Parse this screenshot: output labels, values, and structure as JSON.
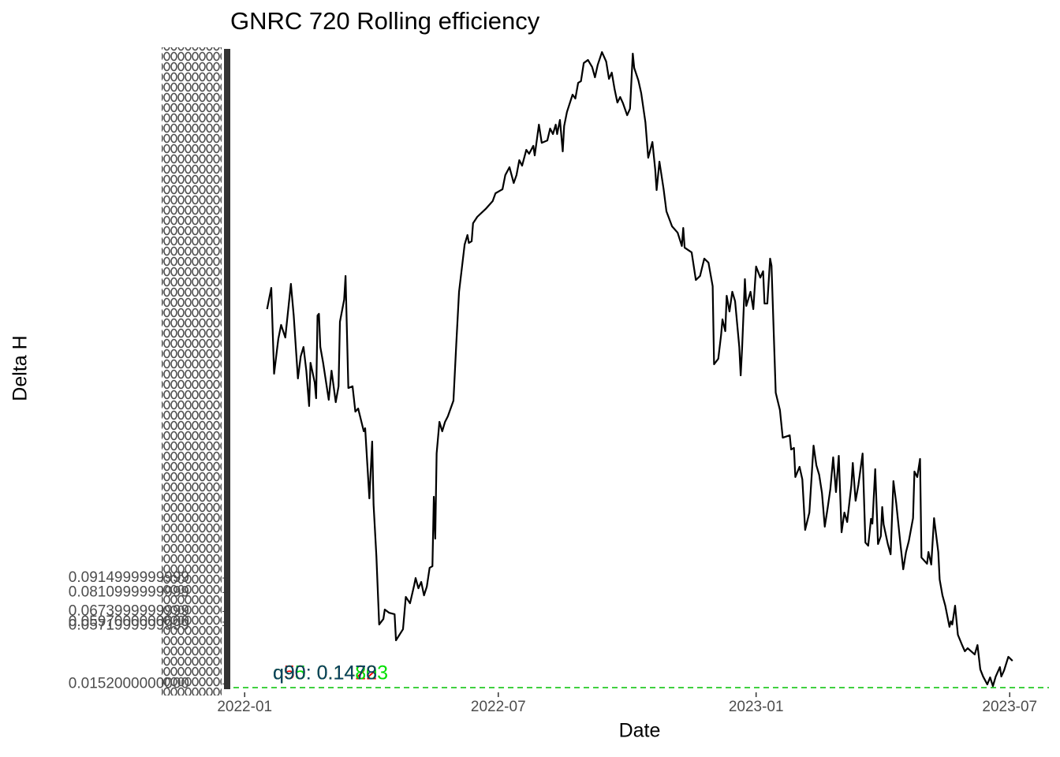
{
  "chart_data": {
    "type": "line",
    "title": "GNRC 720 Rolling efficiency",
    "x_label": "Date",
    "y_label": "Delta H",
    "color": "#000000",
    "x": [
      "2022-01-17",
      "2022-01-20",
      "2022-01-22",
      "2022-01-25",
      "2022-01-27",
      "2022-01-30",
      "2022-02-03",
      "2022-02-05",
      "2022-02-08",
      "2022-02-10",
      "2022-02-12",
      "2022-02-14",
      "2022-02-16",
      "2022-02-17",
      "2022-02-20",
      "2022-02-21",
      "2022-02-22",
      "2022-02-23",
      "2022-02-24",
      "2022-02-26",
      "2022-03-02",
      "2022-03-04",
      "2022-03-07",
      "2022-03-09",
      "2022-03-10",
      "2022-03-13",
      "2022-03-14",
      "2022-03-16",
      "2022-03-19",
      "2022-03-21",
      "2022-03-23",
      "2022-03-27",
      "2022-03-28",
      "2022-03-31",
      "2022-04-02",
      "2022-04-03",
      "2022-04-05",
      "2022-04-07",
      "2022-04-10",
      "2022-04-11",
      "2022-04-14",
      "2022-04-18",
      "2022-04-19",
      "2022-04-24",
      "2022-04-26",
      "2022-04-29",
      "2022-05-02",
      "2022-05-03",
      "2022-05-05",
      "2022-05-07",
      "2022-05-09",
      "2022-05-11",
      "2022-05-13",
      "2022-05-15",
      "2022-05-16",
      "2022-05-17",
      "2022-05-18",
      "2022-05-20",
      "2022-05-22",
      "2022-05-24",
      "2022-05-26",
      "2022-05-30",
      "2022-06-01",
      "2022-06-03",
      "2022-06-07",
      "2022-06-09",
      "2022-06-10",
      "2022-06-12",
      "2022-06-13",
      "2022-06-16",
      "2022-06-22",
      "2022-06-27",
      "2022-06-29",
      "2022-07-04",
      "2022-07-06",
      "2022-07-09",
      "2022-07-12",
      "2022-07-14",
      "2022-07-16",
      "2022-07-18",
      "2022-07-21",
      "2022-07-23",
      "2022-07-26",
      "2022-07-27",
      "2022-07-30",
      "2022-08-01",
      "2022-08-05",
      "2022-08-07",
      "2022-08-09",
      "2022-08-11",
      "2022-08-12",
      "2022-08-14",
      "2022-08-16",
      "2022-08-17",
      "2022-08-19",
      "2022-08-23",
      "2022-08-25",
      "2022-08-27",
      "2022-08-29",
      "2022-08-31",
      "2022-09-03",
      "2022-09-06",
      "2022-09-08",
      "2022-09-10",
      "2022-09-13",
      "2022-09-16",
      "2022-09-18",
      "2022-09-20",
      "2022-09-22",
      "2022-09-24",
      "2022-09-26",
      "2022-09-28",
      "2022-10-01",
      "2022-10-03",
      "2022-10-05",
      "2022-10-06",
      "2022-10-09",
      "2022-10-11",
      "2022-10-14",
      "2022-10-16",
      "2022-10-19",
      "2022-10-21",
      "2022-10-22",
      "2022-10-24",
      "2022-10-27",
      "2022-10-29",
      "2022-11-02",
      "2022-11-06",
      "2022-11-09",
      "2022-11-10",
      "2022-11-11",
      "2022-11-16",
      "2022-11-19",
      "2022-11-22",
      "2022-11-25",
      "2022-11-28",
      "2022-12-01",
      "2022-12-02",
      "2022-12-05",
      "2022-12-07",
      "2022-12-08",
      "2022-12-10",
      "2022-12-11",
      "2022-12-13",
      "2022-12-15",
      "2022-12-17",
      "2022-12-20",
      "2022-12-21",
      "2022-12-22",
      "2022-12-24",
      "2022-12-25",
      "2022-12-28",
      "2022-12-30",
      "2023-01-01",
      "2023-01-04",
      "2023-01-06",
      "2023-01-07",
      "2023-01-09",
      "2023-01-11",
      "2023-01-12",
      "2023-01-15",
      "2023-01-18",
      "2023-01-20",
      "2023-01-25",
      "2023-01-26",
      "2023-01-28",
      "2023-01-29",
      "2023-02-01",
      "2023-02-03",
      "2023-02-05",
      "2023-02-08",
      "2023-02-11",
      "2023-02-13",
      "2023-02-15",
      "2023-02-17",
      "2023-02-19",
      "2023-02-21",
      "2023-02-23",
      "2023-02-25",
      "2023-02-27",
      "2023-03-01",
      "2023-03-03",
      "2023-03-05",
      "2023-03-07",
      "2023-03-10",
      "2023-03-11",
      "2023-03-13",
      "2023-03-15",
      "2023-03-18",
      "2023-03-20",
      "2023-03-22",
      "2023-03-24",
      "2023-03-25",
      "2023-03-27",
      "2023-03-29",
      "2023-03-31",
      "2023-04-01",
      "2023-04-02",
      "2023-04-05",
      "2023-04-07",
      "2023-04-09",
      "2023-04-11",
      "2023-04-14",
      "2023-04-16",
      "2023-04-18",
      "2023-04-20",
      "2023-04-23",
      "2023-04-24",
      "2023-04-26",
      "2023-04-28",
      "2023-04-29",
      "2023-05-03",
      "2023-05-04",
      "2023-05-06",
      "2023-05-08",
      "2023-05-11",
      "2023-05-12",
      "2023-05-14",
      "2023-05-16",
      "2023-05-19",
      "2023-05-20",
      "2023-05-21",
      "2023-05-23",
      "2023-05-25",
      "2023-05-28",
      "2023-05-30",
      "2023-06-01",
      "2023-06-06",
      "2023-06-08",
      "2023-06-10",
      "2023-06-12",
      "2023-06-15",
      "2023-06-17",
      "2023-06-19",
      "2023-06-21",
      "2023-06-24",
      "2023-06-25",
      "2023-06-27",
      "2023-06-30",
      "2023-07-03"
    ],
    "values": [
      0.2854,
      0.3007,
      0.2388,
      0.2638,
      0.274,
      0.2649,
      0.3036,
      0.2808,
      0.2354,
      0.2513,
      0.2581,
      0.241,
      0.2155,
      0.2467,
      0.2325,
      0.2211,
      0.2808,
      0.282,
      0.2581,
      0.2467,
      0.22,
      0.241,
      0.2183,
      0.2297,
      0.2763,
      0.2922,
      0.3093,
      0.2285,
      0.2297,
      0.2115,
      0.2137,
      0.1973,
      0.1995,
      0.1489,
      0.1899,
      0.1444,
      0.1074,
      0.058,
      0.062,
      0.0688,
      0.0665,
      0.0654,
      0.0466,
      0.0546,
      0.0779,
      0.0733,
      0.0864,
      0.0915,
      0.0841,
      0.0887,
      0.079,
      0.0853,
      0.0989,
      0.1,
      0.1501,
      0.1199,
      0.1813,
      0.2041,
      0.1973,
      0.2041,
      0.2081,
      0.2194,
      0.2598,
      0.2979,
      0.332,
      0.3388,
      0.3331,
      0.3343,
      0.3473,
      0.3519,
      0.3576,
      0.3633,
      0.3689,
      0.3718,
      0.382,
      0.3877,
      0.3763,
      0.382,
      0.3928,
      0.3888,
      0.4002,
      0.3974,
      0.4031,
      0.3962,
      0.4184,
      0.4053,
      0.407,
      0.4156,
      0.4116,
      0.4184,
      0.4116,
      0.4218,
      0.3991,
      0.4173,
      0.4275,
      0.44,
      0.4372,
      0.4485,
      0.4497,
      0.4628,
      0.465,
      0.4599,
      0.4525,
      0.4616,
      0.4707,
      0.4639,
      0.4514,
      0.4559,
      0.444,
      0.4343,
      0.4383,
      0.4338,
      0.4252,
      0.4298,
      0.4696,
      0.4593,
      0.4502,
      0.4411,
      0.4201,
      0.3945,
      0.4059,
      0.386,
      0.3712,
      0.3917,
      0.3718,
      0.3559,
      0.3451,
      0.3405,
      0.3309,
      0.3439,
      0.3297,
      0.3263,
      0.3064,
      0.3093,
      0.3218,
      0.3189,
      0.3019,
      0.2456,
      0.2496,
      0.2666,
      0.278,
      0.2695,
      0.295,
      0.2837,
      0.2979,
      0.2911,
      0.2581,
      0.2376,
      0.257,
      0.307,
      0.2877,
      0.2979,
      0.2854,
      0.3161,
      0.3081,
      0.3127,
      0.2894,
      0.2894,
      0.3218,
      0.3166,
      0.2251,
      0.2126,
      0.1927,
      0.1944,
      0.1842,
      0.1853,
      0.1643,
      0.1717,
      0.1626,
      0.1262,
      0.1387,
      0.187,
      0.1728,
      0.166,
      0.1529,
      0.1285,
      0.1416,
      0.1558,
      0.1785,
      0.1535,
      0.1796,
      0.1245,
      0.1387,
      0.1319,
      0.1586,
      0.1745,
      0.1472,
      0.1586,
      0.1813,
      0.1171,
      0.1148,
      0.1342,
      0.1307,
      0.17,
      0.116,
      0.1217,
      0.1427,
      0.1302,
      0.116,
      0.1086,
      0.1614,
      0.1455,
      0.116,
      0.0978,
      0.1103,
      0.1182,
      0.1347,
      0.1683,
      0.1643,
      0.1774,
      0.1063,
      0.1018,
      0.1103,
      0.1012,
      0.1347,
      0.1103,
      0.0904,
      0.079,
      0.0716,
      0.0563,
      0.0603,
      0.058,
      0.0716,
      0.0506,
      0.0432,
      0.0387,
      0.0409,
      0.0364,
      0.0432,
      0.0256,
      0.0205,
      0.0148,
      0.0199,
      0.0136,
      0.0205,
      0.0273,
      0.0205,
      0.025,
      0.0347,
      0.0318
    ],
    "xlim": [
      "2021-12-24",
      "2023-07-29"
    ],
    "xticks": [
      {
        "value": "2022-01-01",
        "label": "2022-01"
      },
      {
        "value": "2022-07-01",
        "label": "2022-07"
      },
      {
        "value": "2023-01-01",
        "label": "2023-01"
      },
      {
        "value": "2023-07-01",
        "label": "2023-07"
      }
    ],
    "ylim": [
      0.0125,
      0.473
    ],
    "yticks": [
      {
        "value": 0.0915,
        "label": "0.0914999999999"
      },
      {
        "value": 0.0811,
        "label": "0.0810999999999"
      },
      {
        "value": 0.0674,
        "label": "0.0673999999999"
      },
      {
        "value": 0.0597,
        "label": "0.0597000000000"
      },
      {
        "value": 0.0572,
        "label": "0.0571999999999"
      },
      {
        "value": 0.0152,
        "label": "0.0152000000000"
      }
    ],
    "hline": {
      "value": 0.0125,
      "color": "#00c000"
    },
    "annotations": [
      {
        "text": "q50: 0.1422",
        "color": "#ff0000"
      },
      {
        "text": "q95: 0.14803",
        "color": "#00e000"
      },
      {
        "text": "q90: 0.1478",
        "color": "#0a4060"
      }
    ]
  }
}
